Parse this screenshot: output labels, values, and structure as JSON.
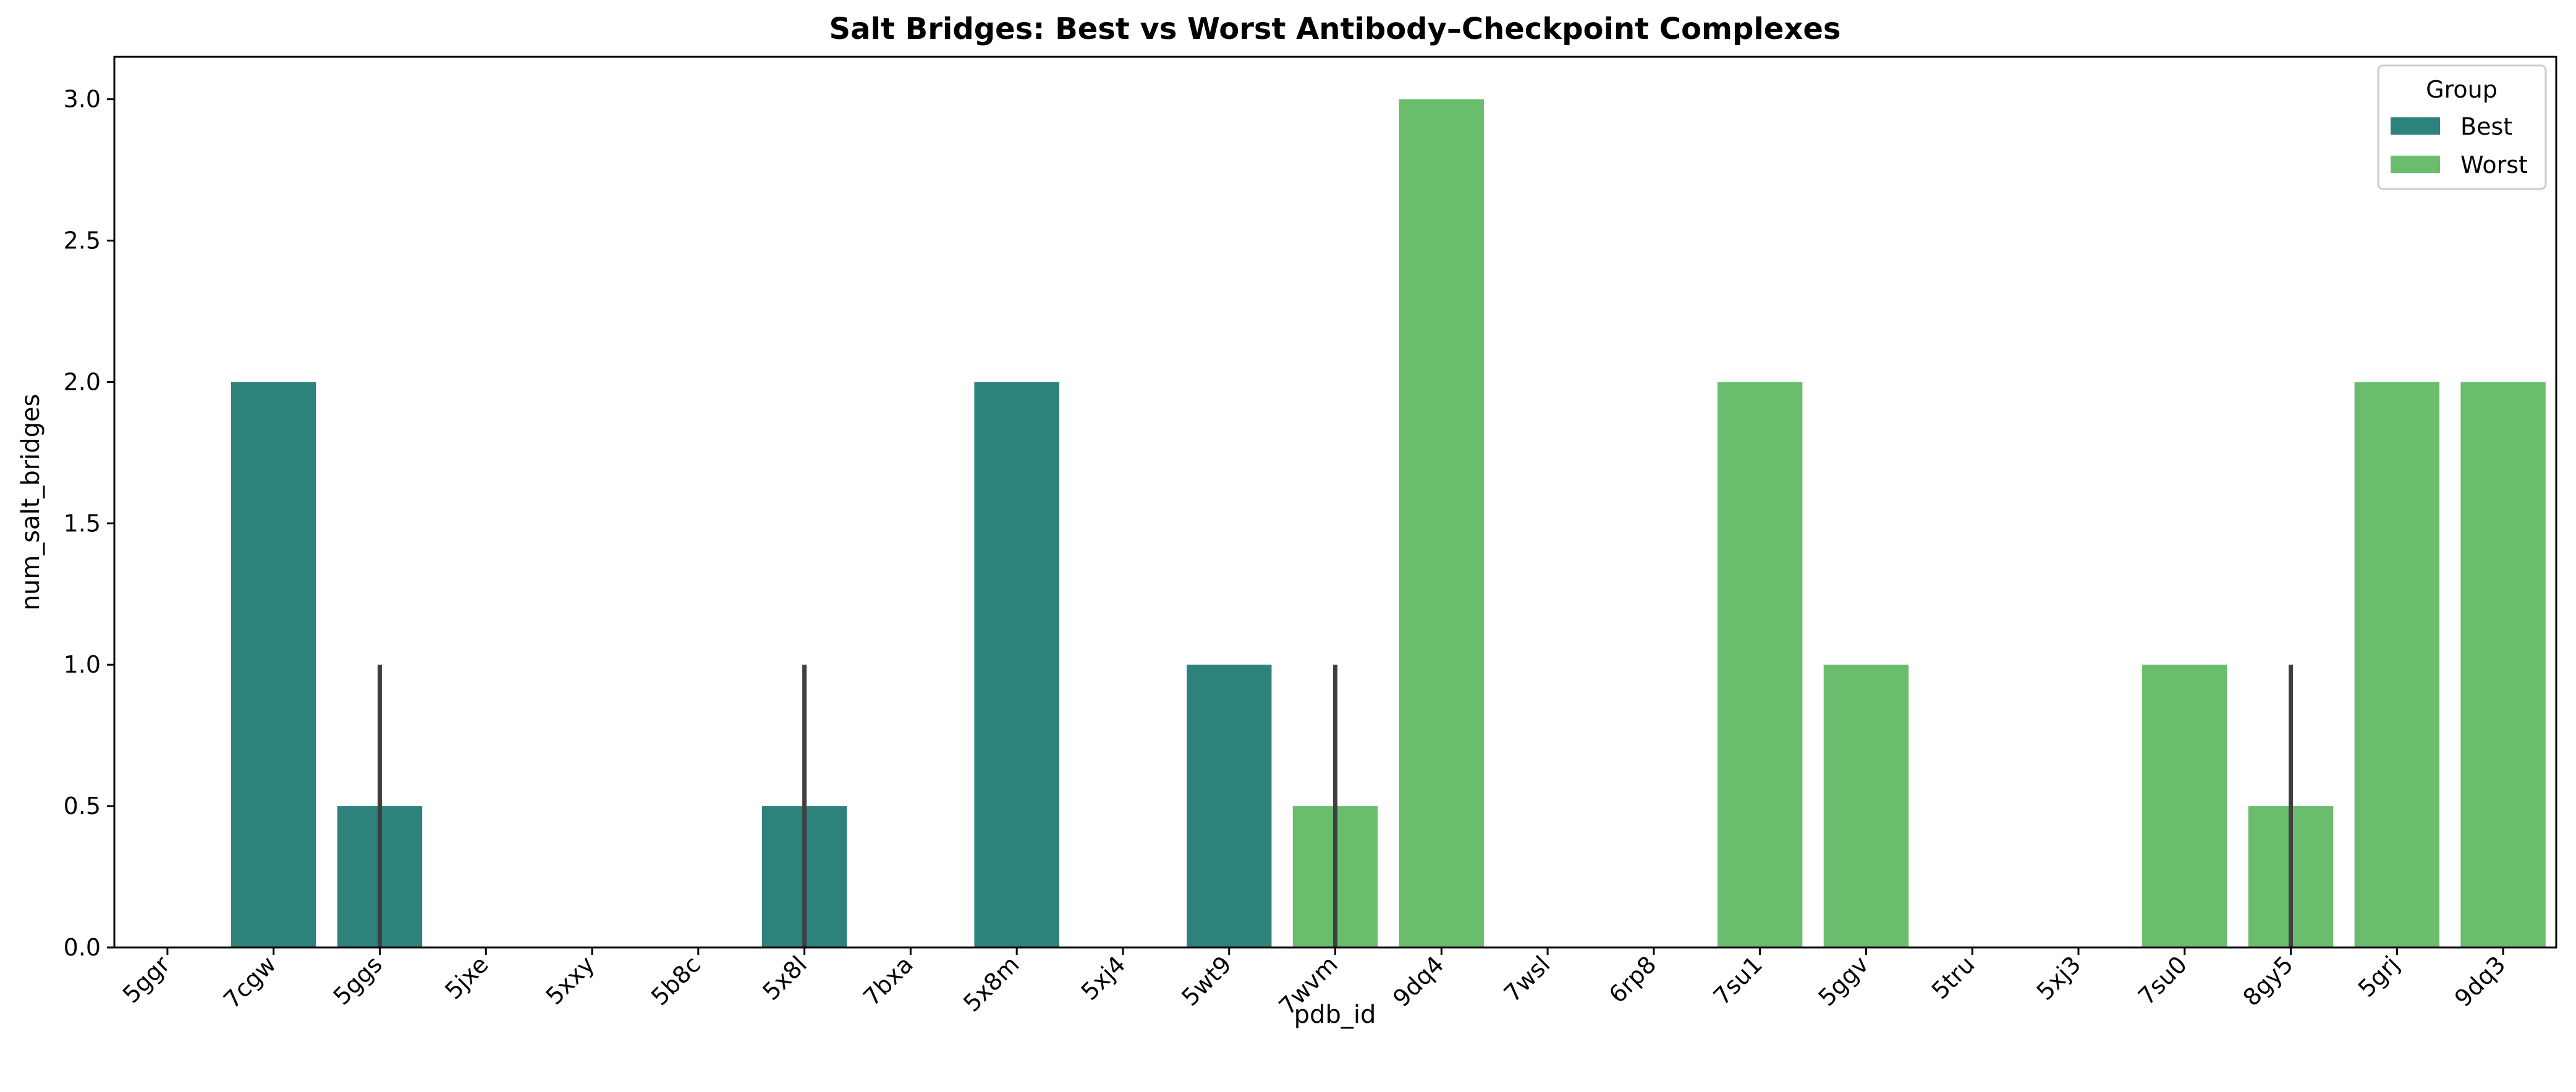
{
  "chart_data": {
    "type": "bar",
    "title": "Salt Bridges: Best vs Worst Antibody–Checkpoint Complexes",
    "xlabel": "pdb_id",
    "ylabel": "num_salt_bridges",
    "ylim": [
      0,
      3.15
    ],
    "yticks": [
      "0.0",
      "0.5",
      "1.0",
      "1.5",
      "2.0",
      "2.5",
      "3.0"
    ],
    "grid": false,
    "legend": {
      "title": "Group",
      "placement": "top-right",
      "entries": [
        {
          "name": "Best",
          "color": "#2e827c"
        },
        {
          "name": "Worst",
          "color": "#6abd6d"
        }
      ]
    },
    "categories": [
      "5ggr",
      "7cgw",
      "5ggs",
      "5jxe",
      "5xxy",
      "5b8c",
      "5x8l",
      "7bxa",
      "5x8m",
      "5xj4",
      "5wt9",
      "7wvm",
      "9dq4",
      "7wsl",
      "6rp8",
      "7su1",
      "5ggv",
      "5tru",
      "5xj3",
      "7su0",
      "8gy5",
      "5grj",
      "9dq3"
    ],
    "series": [
      {
        "name": "Best",
        "values": [
          0,
          2,
          0.5,
          0,
          0,
          0,
          0.5,
          0,
          2,
          0,
          1,
          null,
          null,
          null,
          null,
          null,
          null,
          null,
          null,
          null,
          null,
          null,
          null
        ]
      },
      {
        "name": "Worst",
        "values": [
          null,
          null,
          null,
          null,
          null,
          null,
          null,
          null,
          null,
          null,
          null,
          0.5,
          3,
          0,
          0,
          2,
          1,
          0,
          0,
          1,
          0.5,
          2,
          2
        ]
      }
    ],
    "error_bars": [
      {
        "category": "5ggs",
        "series": "Best",
        "low": 0,
        "high": 1
      },
      {
        "category": "5x8l",
        "series": "Best",
        "low": 0,
        "high": 1
      },
      {
        "category": "7wvm",
        "series": "Worst",
        "low": 0,
        "high": 1
      },
      {
        "category": "8gy5",
        "series": "Worst",
        "low": 0,
        "high": 1
      }
    ]
  }
}
